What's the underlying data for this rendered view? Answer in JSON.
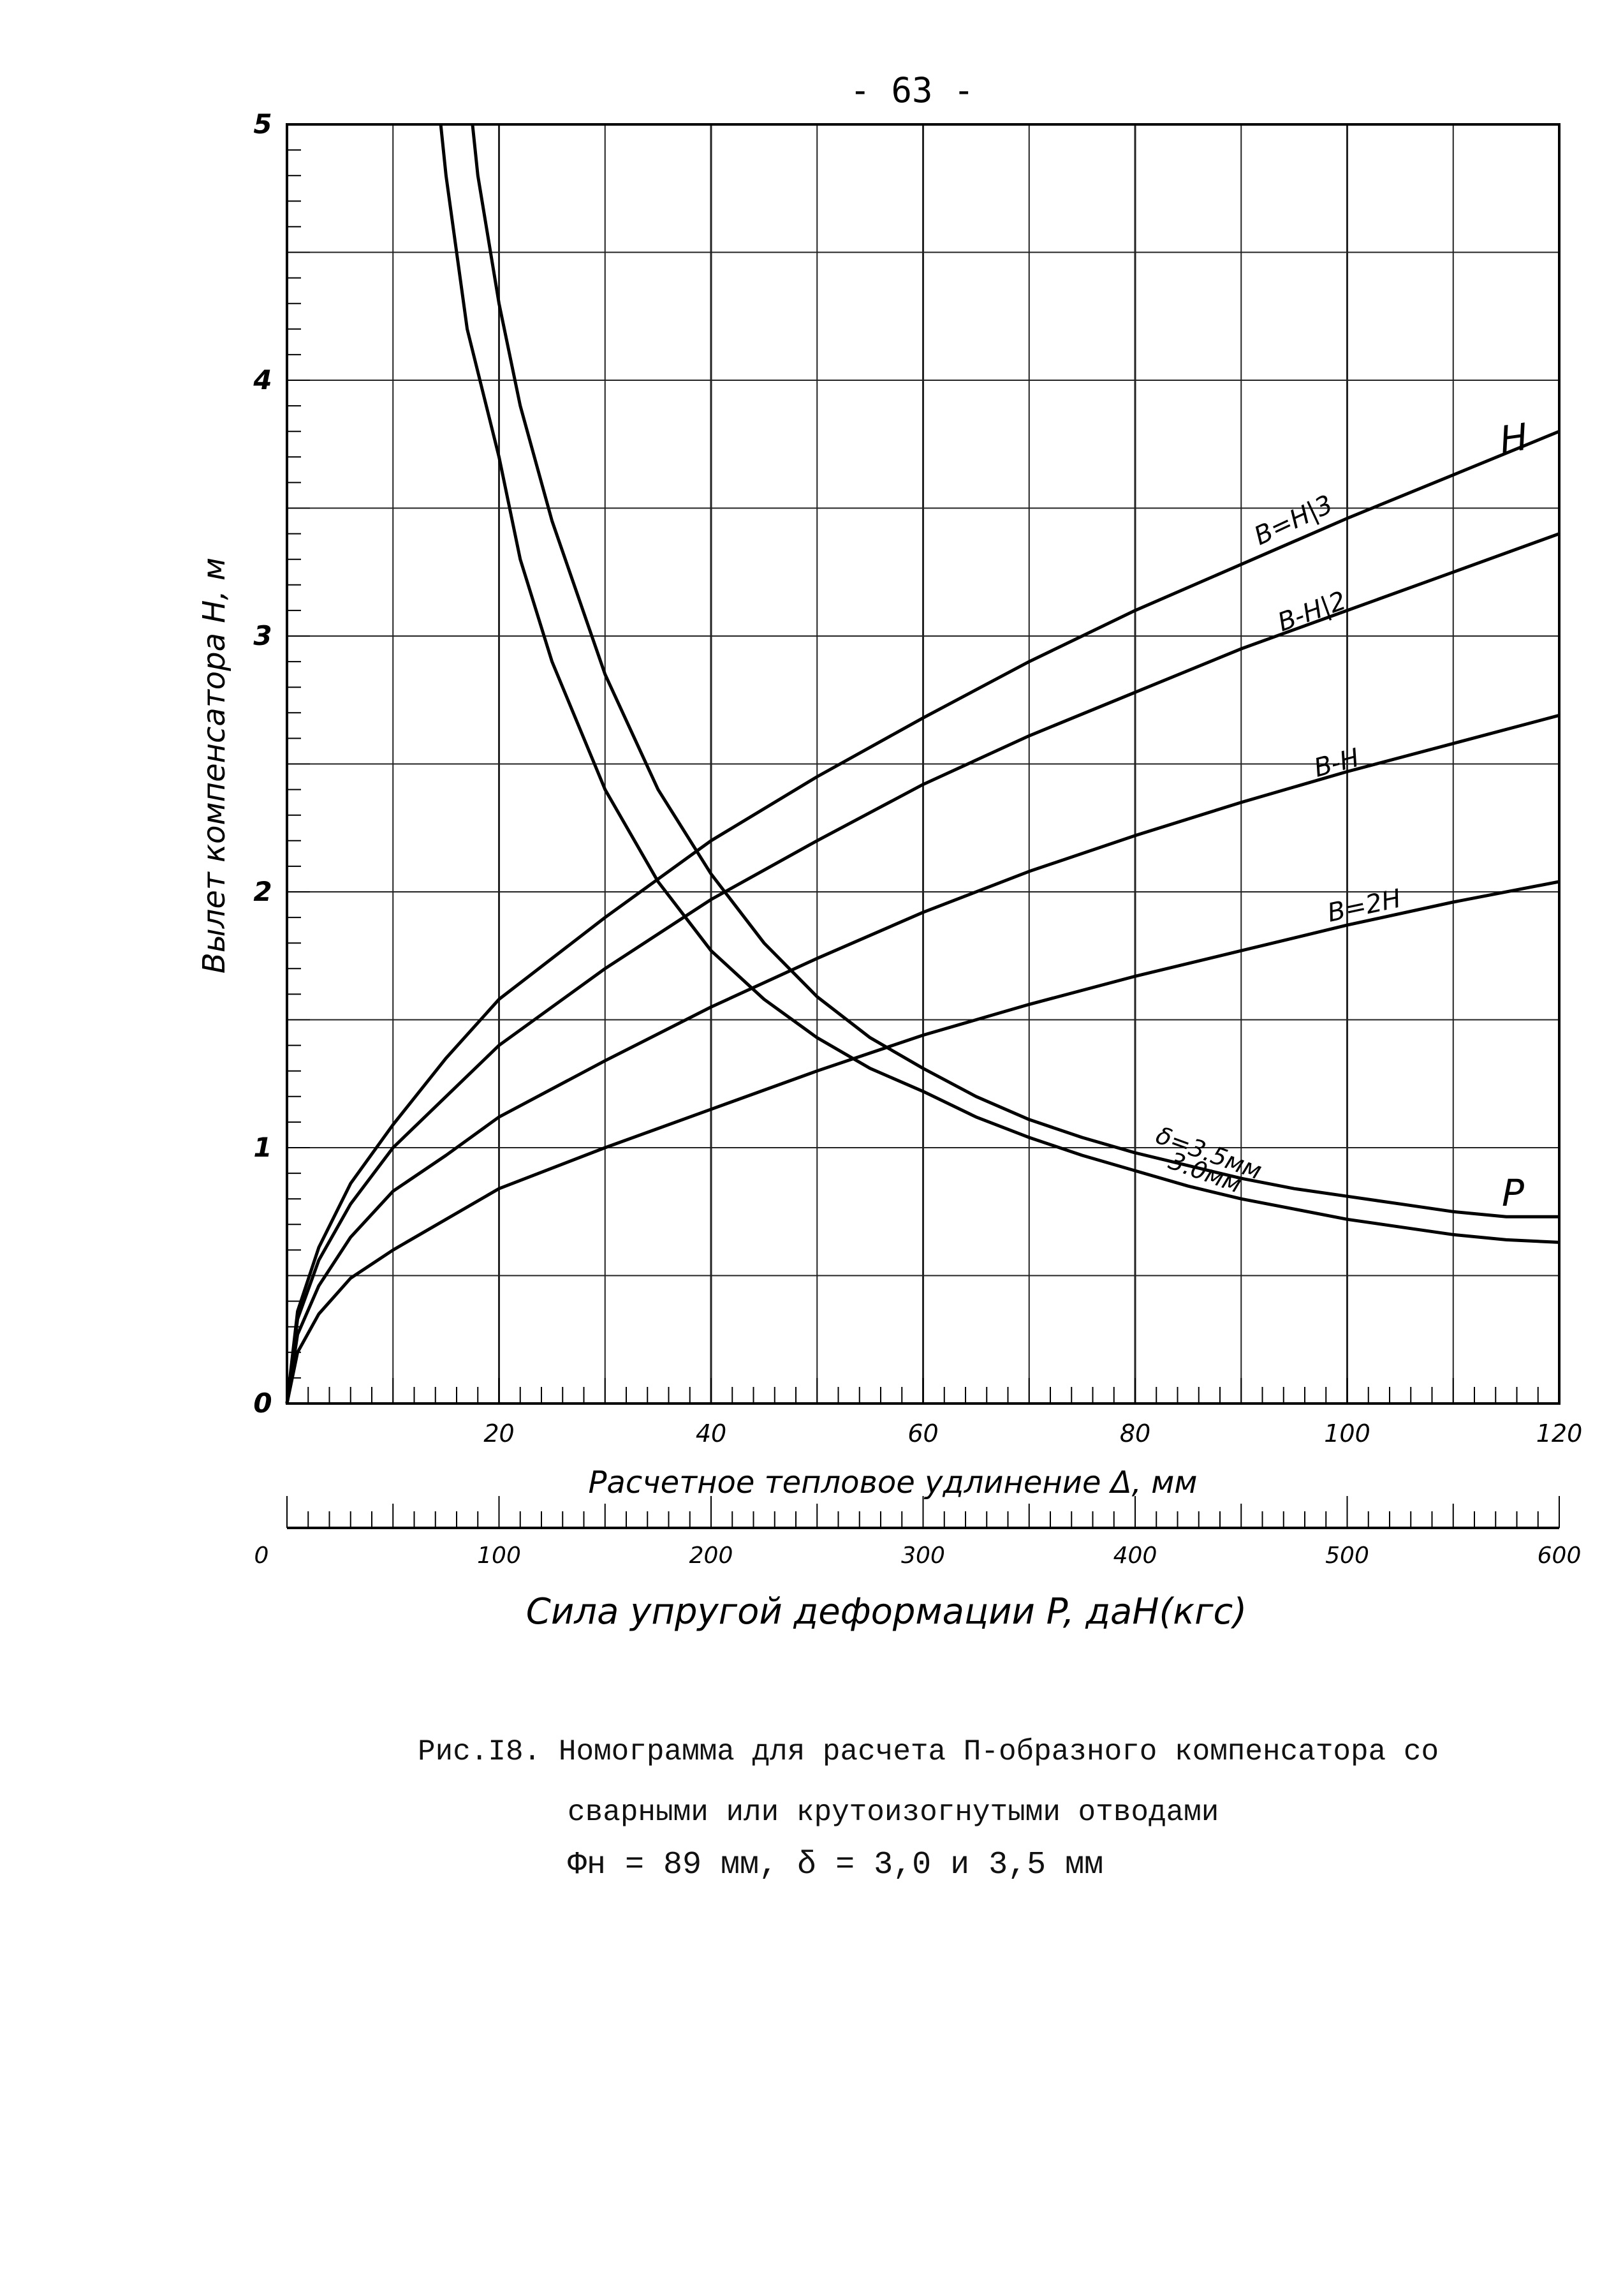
{
  "page_number": "- 63 -",
  "chart_data": {
    "type": "line",
    "ylabel": "Вылет компенсатора   H, м",
    "xlabel": "Расчетное тепловое   удлинение   Δ,  мм",
    "x2label": "Сила упругой   деформации  P,  даН(кгс)",
    "xlim": [
      0,
      120
    ],
    "ylim": [
      0,
      5
    ],
    "x2lim": [
      0,
      600
    ],
    "xticks": [
      "20",
      "40",
      "60",
      "80",
      "100",
      "120"
    ],
    "yticks": [
      "0",
      "1",
      "2",
      "3",
      "4",
      "5"
    ],
    "x2ticks": [
      "0",
      "100",
      "200",
      "300",
      "400",
      "500",
      "600"
    ],
    "grid": true,
    "h_curves": [
      {
        "label": "B=H/3",
        "x": [
          0,
          1,
          3,
          6,
          10,
          15,
          20,
          30,
          40,
          50,
          60,
          70,
          80,
          90,
          100,
          110,
          120
        ],
        "y": [
          0,
          0.36,
          0.61,
          0.86,
          1.09,
          1.35,
          1.58,
          1.9,
          2.2,
          2.45,
          2.68,
          2.9,
          3.1,
          3.28,
          3.46,
          3.63,
          3.8
        ]
      },
      {
        "label": "B=H/2",
        "x": [
          0,
          1,
          3,
          6,
          10,
          15,
          20,
          30,
          40,
          50,
          60,
          70,
          80,
          90,
          100,
          110,
          120
        ],
        "y": [
          0,
          0.33,
          0.56,
          0.78,
          1.0,
          1.2,
          1.4,
          1.7,
          1.97,
          2.2,
          2.42,
          2.61,
          2.78,
          2.95,
          3.1,
          3.25,
          3.4
        ]
      },
      {
        "label": "B=H",
        "x": [
          0,
          1,
          3,
          6,
          10,
          15,
          20,
          30,
          40,
          50,
          60,
          70,
          80,
          90,
          100,
          110,
          120
        ],
        "y": [
          0,
          0.27,
          0.46,
          0.65,
          0.83,
          0.97,
          1.12,
          1.34,
          1.55,
          1.74,
          1.92,
          2.08,
          2.22,
          2.35,
          2.47,
          2.58,
          2.69
        ]
      },
      {
        "label": "B=2H",
        "x": [
          0,
          1,
          3,
          6,
          10,
          15,
          20,
          30,
          40,
          50,
          60,
          70,
          80,
          90,
          100,
          110,
          120
        ],
        "y": [
          0,
          0.2,
          0.35,
          0.49,
          0.6,
          0.72,
          0.84,
          1.0,
          1.15,
          1.3,
          1.44,
          1.56,
          1.67,
          1.77,
          1.87,
          1.96,
          2.04
        ]
      }
    ],
    "p_curves": [
      {
        "label": "δ=3.5мм",
        "x": [
          17.5,
          18,
          20,
          22,
          25,
          30,
          35,
          40,
          45,
          50,
          55,
          60,
          65,
          70,
          75,
          80,
          85,
          90,
          95,
          100,
          105,
          110,
          115,
          120
        ],
        "y": [
          5,
          4.8,
          4.3,
          3.9,
          3.45,
          2.85,
          2.4,
          2.07,
          1.8,
          1.59,
          1.43,
          1.31,
          1.2,
          1.11,
          1.04,
          0.98,
          0.93,
          0.88,
          0.84,
          0.81,
          0.78,
          0.75,
          0.73,
          0.73
        ]
      },
      {
        "label": "3.0мм",
        "x": [
          14.5,
          15,
          17,
          20,
          22,
          25,
          30,
          35,
          40,
          45,
          50,
          55,
          60,
          65,
          70,
          75,
          80,
          85,
          90,
          95,
          100,
          105,
          110,
          115,
          120
        ],
        "y": [
          5,
          4.8,
          4.2,
          3.7,
          3.3,
          2.9,
          2.4,
          2.04,
          1.77,
          1.58,
          1.43,
          1.31,
          1.22,
          1.12,
          1.04,
          0.97,
          0.91,
          0.85,
          0.8,
          0.76,
          0.72,
          0.69,
          0.66,
          0.64,
          0.63
        ]
      }
    ],
    "annotations": {
      "h_letter": "H",
      "p_letter": "P",
      "b_h3": "B=H|3",
      "b_h2": "B-H|2",
      "b_h": "B-H",
      "b_2h": "B=2H",
      "delta35": "δ=3.5мм",
      "delta30": "3.0мм"
    }
  },
  "caption": {
    "line1": "Рис.I8. Номограмма для расчета П-образного компенсатора со",
    "line2": "сварными или крутоизогнутыми отводами",
    "line3": "Φн = 89 мм,   δ = 3,0 и 3,5 мм"
  }
}
